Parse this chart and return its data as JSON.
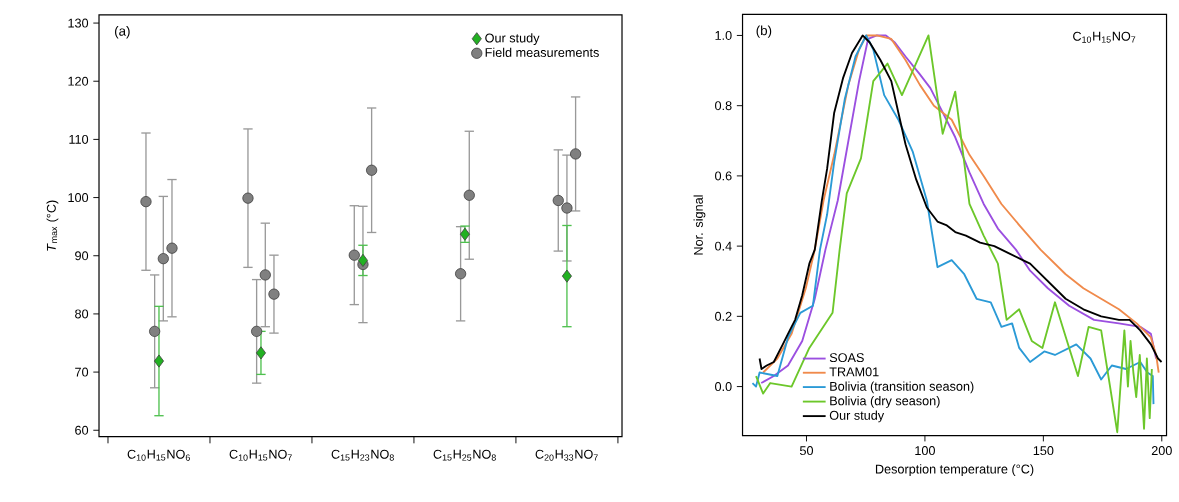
{
  "chart_data": [
    {
      "type": "scatter",
      "annotations": [
        "(a)"
      ],
      "ylabel": "*T*$_{max}$ (°C)",
      "categories": [
        "C$_{10}$H$_{15}$NO$_{6}$",
        "C$_{10}$H$_{15}$NO$_{7}$",
        "C$_{15}$H$_{23}$NO$_{8}$",
        "C$_{15}$H$_{25}$NO$_{8}$",
        "C$_{20}$H$_{33}$NO$_{7}$"
      ],
      "ylim": [
        58.9,
        131.4
      ],
      "yticks": [
        60,
        70,
        80,
        90,
        100,
        110,
        120,
        130
      ],
      "legend": "top right",
      "series": [
        {
          "name": "Our study",
          "color": "#22b022",
          "marker": "diamond",
          "x": [
            "C$_{10}$H$_{15}$NO$_{6}$",
            "C$_{10}$H$_{15}$NO$_{7}$",
            "C$_{15}$H$_{23}$NO$_{8}$",
            "C$_{15}$H$_{25}$NO$_{8}$",
            "C$_{20}$H$_{33}$NO$_{7}$"
          ],
          "values": [
            71.9,
            73.3,
            89.2,
            93.7,
            86.5
          ],
          "errors": [
            9.4,
            3.7,
            2.6,
            1.4,
            8.7
          ]
        },
        {
          "name": "Field measurements",
          "color": "#808080",
          "marker": "circle",
          "x": [
            "C$_{10}$H$_{15}$NO$_{6}$",
            "C$_{10}$H$_{15}$NO$_{6}$",
            "C$_{10}$H$_{15}$NO$_{6}$",
            "C$_{10}$H$_{15}$NO$_{6}$",
            "C$_{10}$H$_{15}$NO$_{7}$",
            "C$_{10}$H$_{15}$NO$_{7}$",
            "C$_{10}$H$_{15}$NO$_{7}$",
            "C$_{10}$H$_{15}$NO$_{7}$",
            "C$_{15}$H$_{23}$NO$_{8}$",
            "C$_{15}$H$_{23}$NO$_{8}$",
            "C$_{15}$H$_{23}$NO$_{8}$",
            "C$_{15}$H$_{25}$NO$_{8}$",
            "C$_{15}$H$_{25}$NO$_{8}$",
            "C$_{20}$H$_{33}$NO$_{7}$",
            "C$_{20}$H$_{33}$NO$_{7}$",
            "C$_{20}$H$_{33}$NO$_{7}$"
          ],
          "values": [
            99.3,
            77.0,
            89.5,
            91.3,
            99.9,
            77.0,
            86.7,
            83.4,
            90.1,
            88.5,
            104.7,
            86.9,
            100.4,
            99.5,
            98.2,
            107.5
          ],
          "errors": [
            11.8,
            9.7,
            10.7,
            11.8,
            11.9,
            8.9,
            8.9,
            6.7,
            8.5,
            10.0,
            10.7,
            8.1,
            11.0,
            8.7,
            9.1,
            9.8
          ]
        }
      ]
    },
    {
      "type": "line",
      "annotations": [
        "(b)",
        "C$_{10}$H$_{15}$NO$_{7}$"
      ],
      "xlabel": "Desorption temperature (°C)",
      "ylabel": "Nor. signal",
      "xlim": [
        23,
        202
      ],
      "xticks": [
        50,
        100,
        150,
        200
      ],
      "ylim": [
        -0.14,
        1.06
      ],
      "yticks": [
        {
          "value": 0,
          "label": "0.0"
        },
        {
          "value": 0.2,
          "label": "0.2"
        },
        {
          "value": 0.4,
          "label": "0.4"
        },
        {
          "value": 0.6,
          "label": "0.6"
        },
        {
          "value": 0.8,
          "label": "0.8"
        },
        {
          "value": 1,
          "label": "1.0"
        }
      ],
      "legend": "bottom left",
      "line_style": "solid",
      "series": [
        {
          "name": "SOAS",
          "color": "#9b4fe0",
          "x": [
            30.9,
            36.2,
            42.2,
            48.2,
            53.5,
            58.0,
            63.2,
            67.7,
            72.2,
            76.0,
            79.7,
            83.5,
            87.3,
            91.8,
            97.8,
            102.3,
            106.8,
            112.8,
            118.8,
            124.8,
            130.8,
            138.4,
            144.4,
            151.9,
            160.9,
            171.4,
            181.9,
            190.9,
            195.4,
            197.6
          ],
          "values": [
            0.01,
            0.03,
            0.06,
            0.13,
            0.25,
            0.39,
            0.53,
            0.7,
            0.87,
            0.99,
            1.0,
            1.0,
            0.98,
            0.94,
            0.89,
            0.85,
            0.79,
            0.71,
            0.61,
            0.52,
            0.45,
            0.39,
            0.33,
            0.28,
            0.23,
            0.19,
            0.18,
            0.17,
            0.15,
            0.08
          ]
        },
        {
          "name": "TRAM01",
          "color": "#f08a4b",
          "x": [
            31.7,
            37.7,
            43.7,
            49.7,
            53.5,
            57.2,
            61.7,
            67.7,
            72.2,
            75.2,
            79.7,
            85.8,
            91.8,
            97.8,
            103.8,
            111.3,
            118.8,
            124.8,
            132.3,
            139.8,
            148.8,
            159.4,
            166.9,
            174.4,
            181.9,
            189.4,
            195.4,
            197.6,
            198.7
          ],
          "values": [
            0.04,
            0.08,
            0.15,
            0.28,
            0.39,
            0.53,
            0.66,
            0.86,
            0.96,
            1.0,
            1.0,
            0.99,
            0.93,
            0.86,
            0.8,
            0.76,
            0.66,
            0.6,
            0.52,
            0.46,
            0.39,
            0.32,
            0.28,
            0.25,
            0.22,
            0.18,
            0.14,
            0.09,
            0.04
          ]
        },
        {
          "name": "Bolivia (transition season)",
          "color": "#2b9ad6",
          "x": [
            27.2,
            28.7,
            30.2,
            37.7,
            42.2,
            47.4,
            52.7,
            55.7,
            58.7,
            61.7,
            66.2,
            70.7,
            75.2,
            78.2,
            82.8,
            88.8,
            94.8,
            100.8,
            105.3,
            111.3,
            116.6,
            121.8,
            127.8,
            132.3,
            136.8,
            139.8,
            144.4,
            150.4,
            154.9,
            163.9,
            169.9,
            174.4,
            178.9,
            184.9,
            190.9,
            193.9,
            196.2,
            196.5
          ],
          "values": [
            0.01,
            0.0,
            0.04,
            0.03,
            0.14,
            0.21,
            0.23,
            0.39,
            0.49,
            0.64,
            0.82,
            0.94,
            1.0,
            0.96,
            0.83,
            0.76,
            0.67,
            0.53,
            0.34,
            0.36,
            0.32,
            0.25,
            0.24,
            0.17,
            0.18,
            0.11,
            0.07,
            0.1,
            0.09,
            0.12,
            0.08,
            0.02,
            0.06,
            0.05,
            0.07,
            0.04,
            0.03,
            -0.05
          ]
        },
        {
          "name": "Bolivia (dry season)",
          "color": "#6cc72a",
          "x": [
            28.7,
            31.7,
            34.7,
            43.7,
            51.2,
            61.0,
            64.0,
            67.0,
            73.0,
            78.2,
            84.2,
            90.3,
            101.5,
            107.5,
            112.8,
            118.8,
            124.8,
            130.8,
            134.5,
            139.8,
            145.1,
            149.6,
            154.9,
            160.9,
            164.6,
            169.1,
            174.4,
            181.2,
            184.2,
            185.7,
            186.8,
            188.0,
            189.2,
            190.7,
            192.5,
            193.7,
            194.9,
            195.8
          ],
          "values": [
            0.03,
            -0.02,
            0.01,
            0.0,
            0.11,
            0.21,
            0.39,
            0.55,
            0.65,
            0.87,
            0.92,
            0.83,
            1.0,
            0.72,
            0.84,
            0.52,
            0.43,
            0.35,
            0.19,
            0.22,
            0.13,
            0.11,
            0.24,
            0.11,
            0.03,
            0.17,
            0.16,
            -0.13,
            0.16,
            0.0,
            0.13,
            0.04,
            -0.03,
            0.09,
            -0.12,
            0.08,
            -0.09,
            0.05
          ]
        },
        {
          "name": "Our study",
          "color": "#000000",
          "x": [
            30.2,
            31.0,
            33.2,
            36.2,
            40.0,
            42.2,
            45.2,
            48.2,
            51.2,
            53.5,
            56.5,
            58.7,
            61.7,
            65.5,
            69.2,
            71.9,
            73.7,
            76.7,
            81.2,
            85.8,
            88.8,
            91.8,
            96.3,
            100.8,
            105.3,
            109.0,
            112.8,
            117.3,
            123.3,
            129.3,
            135.3,
            141.3,
            144.4,
            151.9,
            159.4,
            166.9,
            174.4,
            181.9,
            186.4,
            190.9,
            195.4,
            198.4,
            199.9
          ],
          "values": [
            0.08,
            0.05,
            0.06,
            0.07,
            0.12,
            0.15,
            0.19,
            0.26,
            0.35,
            0.39,
            0.53,
            0.62,
            0.78,
            0.88,
            0.95,
            0.98,
            1.0,
            0.98,
            0.93,
            0.87,
            0.78,
            0.69,
            0.59,
            0.51,
            0.47,
            0.46,
            0.44,
            0.43,
            0.41,
            0.4,
            0.38,
            0.36,
            0.35,
            0.3,
            0.25,
            0.22,
            0.2,
            0.19,
            0.19,
            0.16,
            0.12,
            0.08,
            0.07
          ]
        }
      ]
    }
  ]
}
